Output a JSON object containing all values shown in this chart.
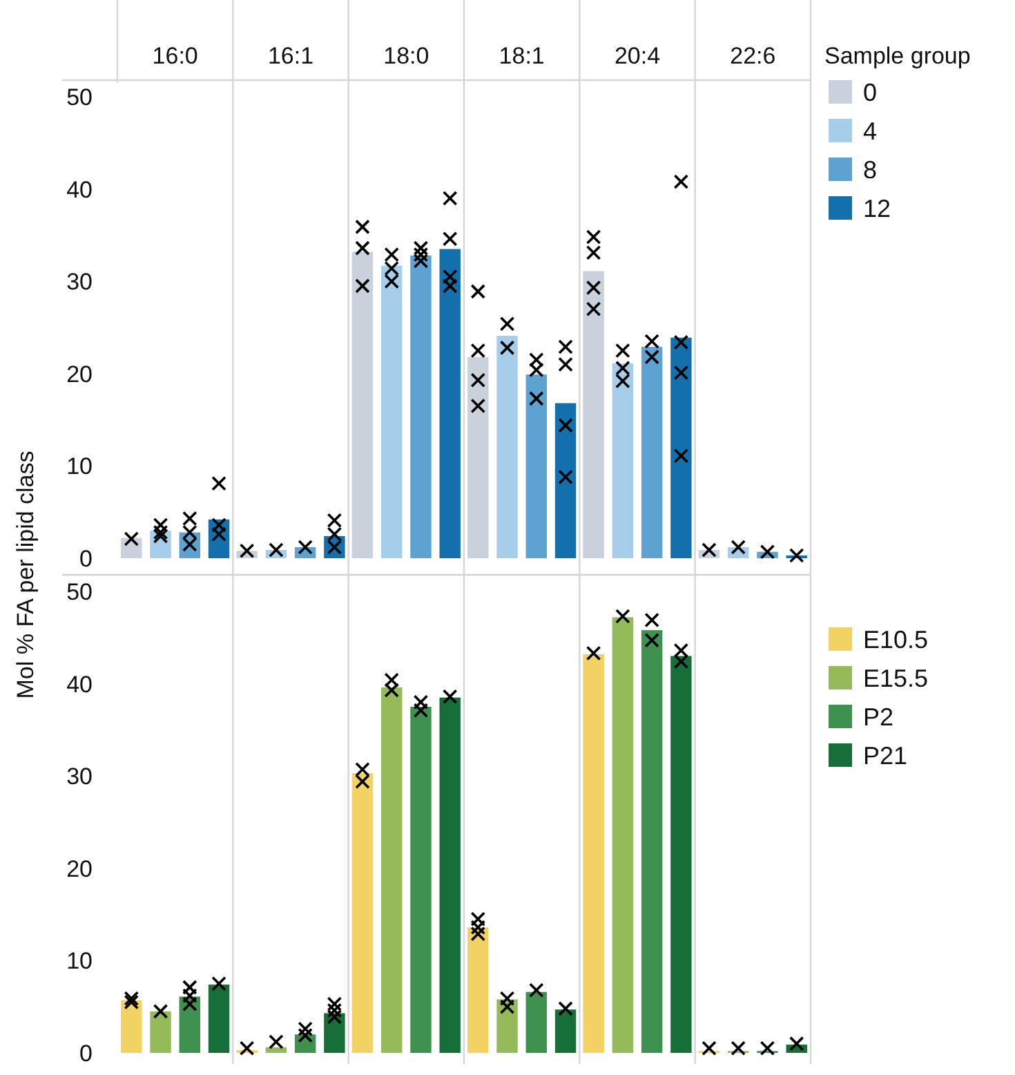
{
  "chart_data": [
    {
      "type": "bar",
      "ylabel": "Mol % FA per lipid class",
      "legend_title": "Sample group",
      "legend": "right",
      "categories": [
        "16:0",
        "16:1",
        "18:0",
        "18:1",
        "20:4",
        "22:6"
      ],
      "ylim": [
        0,
        50
      ],
      "yticks": [
        0,
        10,
        20,
        30,
        40,
        50
      ],
      "series": [
        {
          "name": "0",
          "color": "#c8d1dc",
          "values": [
            2.2,
            0.8,
            33.2,
            21.8,
            31.1,
            0.9
          ]
        },
        {
          "name": "4",
          "color": "#a6cdea",
          "values": [
            3.0,
            0.9,
            31.7,
            24.1,
            21.1,
            1.2
          ]
        },
        {
          "name": "8",
          "color": "#5da2d1",
          "values": [
            2.8,
            1.2,
            32.8,
            19.9,
            22.9,
            0.7
          ]
        },
        {
          "name": "12",
          "color": "#1470ad",
          "values": [
            4.2,
            2.4,
            33.5,
            16.8,
            23.9,
            0.3
          ]
        },
        {
          "type": "scatter",
          "color": "#000000",
          "marker": "cross",
          "x": [
            "16:0",
            "16:1",
            "18:0",
            "18:0",
            "18:0",
            "18:1",
            "18:1",
            "18:1",
            "18:1",
            "20:4",
            "20:4",
            "20:4",
            "20:4",
            "22:6"
          ],
          "values": [
            2.1,
            0.8,
            35.9,
            33.6,
            29.5,
            28.9,
            22.5,
            19.3,
            16.5,
            34.8,
            33.1,
            29.3,
            27.0,
            0.9
          ]
        },
        {
          "type": "scatter",
          "color": "#000000",
          "marker": "cross",
          "x": [
            "16:0",
            "16:0",
            "16:0",
            "16:1",
            "18:0",
            "18:0",
            "18:0",
            "18:1",
            "18:1",
            "20:4",
            "20:4",
            "20:4",
            "22:6"
          ],
          "values": [
            3.6,
            2.8,
            2.4,
            0.9,
            32.9,
            31.4,
            30.0,
            25.4,
            22.8,
            22.5,
            20.6,
            19.2,
            1.2
          ]
        },
        {
          "type": "scatter",
          "color": "#000000",
          "marker": "cross",
          "x": [
            "16:0",
            "16:0",
            "16:0",
            "16:1",
            "18:0",
            "18:0",
            "18:0",
            "18:1",
            "18:1",
            "18:1",
            "20:4",
            "20:4",
            "22:6"
          ],
          "values": [
            4.3,
            2.8,
            1.5,
            1.2,
            33.6,
            32.9,
            32.2,
            21.5,
            20.4,
            17.3,
            23.5,
            21.8,
            0.7
          ]
        },
        {
          "type": "scatter",
          "color": "#000000",
          "marker": "cross",
          "x": [
            "16:0",
            "16:0",
            "16:0",
            "16:1",
            "16:1",
            "16:1",
            "18:0",
            "18:0",
            "18:0",
            "18:0",
            "18:1",
            "18:1",
            "18:1",
            "18:1",
            "20:4",
            "20:4",
            "20:4",
            "20:4",
            "22:6"
          ],
          "values": [
            8.1,
            3.6,
            2.6,
            4.1,
            2.6,
            1.2,
            39.0,
            34.6,
            30.5,
            29.5,
            22.9,
            21.0,
            14.4,
            8.8,
            40.8,
            23.4,
            20.1,
            11.1,
            0.3
          ]
        }
      ]
    },
    {
      "type": "bar",
      "legend": "right",
      "tick_labels": "y",
      "categories": [
        "16:0",
        "16:1",
        "18:0",
        "18:1",
        "20:4",
        "22:6"
      ],
      "ylim": [
        0,
        50
      ],
      "yticks": [
        0,
        10,
        20,
        30,
        40,
        50
      ],
      "series": [
        {
          "name": "E10.5",
          "color": "#f3d264",
          "values": [
            5.7,
            0.3,
            30.3,
            13.6,
            43.2,
            0.2
          ]
        },
        {
          "name": "E15.5",
          "color": "#95ba59",
          "values": [
            4.5,
            0.6,
            39.6,
            5.8,
            47.2,
            0.2
          ]
        },
        {
          "name": "P2",
          "color": "#3f9150",
          "values": [
            6.1,
            2.0,
            37.5,
            6.6,
            45.8,
            0.2
          ]
        },
        {
          "name": "P21",
          "color": "#166f38",
          "values": [
            7.4,
            4.3,
            38.5,
            4.7,
            43.0,
            0.9
          ]
        },
        {
          "type": "scatter",
          "color": "#000000",
          "marker": "cross",
          "x": [
            "16:0",
            "16:0",
            "16:1",
            "18:0",
            "18:0",
            "18:1",
            "18:1",
            "18:1",
            "20:4",
            "22:6"
          ],
          "values": [
            5.9,
            5.5,
            0.5,
            30.7,
            29.4,
            14.5,
            13.6,
            12.9,
            43.3,
            0.5
          ]
        },
        {
          "type": "scatter",
          "color": "#000000",
          "marker": "cross",
          "x": [
            "16:0",
            "16:1",
            "18:0",
            "18:0",
            "18:1",
            "18:1",
            "20:4",
            "22:6"
          ],
          "values": [
            4.5,
            1.2,
            40.4,
            39.3,
            5.9,
            5.0,
            47.3,
            0.5
          ]
        },
        {
          "type": "scatter",
          "color": "#000000",
          "marker": "cross",
          "x": [
            "16:0",
            "16:0",
            "16:0",
            "16:1",
            "16:1",
            "18:0",
            "18:0",
            "18:1",
            "20:4",
            "20:4",
            "22:6"
          ],
          "values": [
            7.1,
            6.2,
            5.3,
            2.6,
            1.9,
            38.0,
            37.1,
            6.8,
            46.9,
            44.7,
            0.5
          ]
        },
        {
          "type": "scatter",
          "color": "#000000",
          "marker": "cross",
          "x": [
            "16:0",
            "16:1",
            "16:1",
            "16:1",
            "18:0",
            "18:1",
            "20:4",
            "20:4",
            "22:6"
          ],
          "values": [
            7.5,
            5.3,
            4.6,
            3.9,
            38.6,
            4.8,
            43.6,
            42.4,
            1.0
          ]
        }
      ]
    }
  ]
}
